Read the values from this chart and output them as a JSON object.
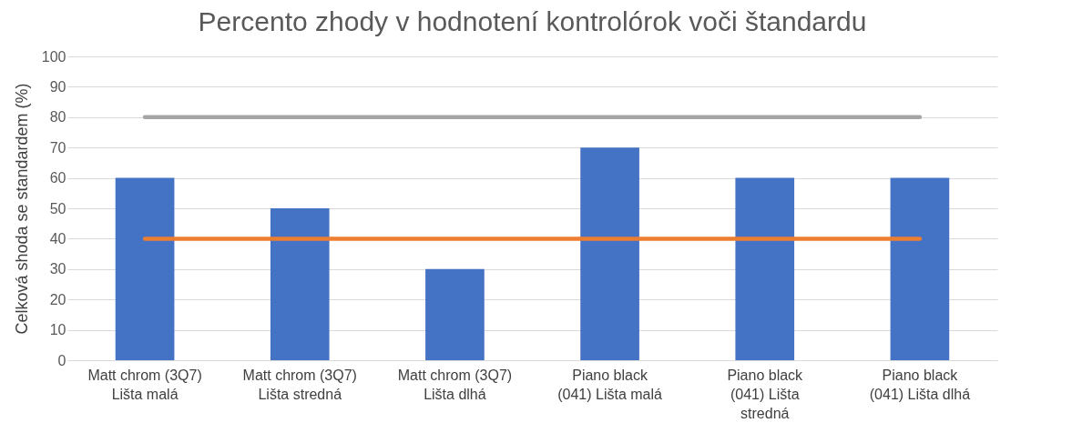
{
  "chart_data": {
    "type": "bar",
    "title": "Percento zhody v hodnotení kontrolórok voči štandardu",
    "ylabel": "Celková shoda se standardem (%)",
    "categories": [
      "Matt chrom (3Q7) Lišta malá",
      "Matt chrom (3Q7) Lišta stredná",
      "Matt chrom (3Q7) Lišta dlhá",
      "Piano black (041) Lišta malá",
      "Piano black (041) Lišta stredná",
      "Piano black (041) Lišta dlhá"
    ],
    "series": [
      {
        "color": "#4472c4",
        "values": [
          60,
          50,
          30,
          70,
          60,
          60
        ]
      },
      {
        "type": "line",
        "color": "#ed7d31",
        "values": [
          40,
          40,
          40,
          40,
          40,
          40
        ]
      },
      {
        "type": "line",
        "color": "#a5a5a5",
        "values": [
          80,
          80,
          80,
          80,
          80,
          80
        ]
      }
    ],
    "ylim": [
      0,
      100
    ],
    "yticks": [
      0,
      10,
      20,
      30,
      40,
      50,
      60,
      70,
      80,
      90,
      100
    ],
    "grid": "y"
  }
}
